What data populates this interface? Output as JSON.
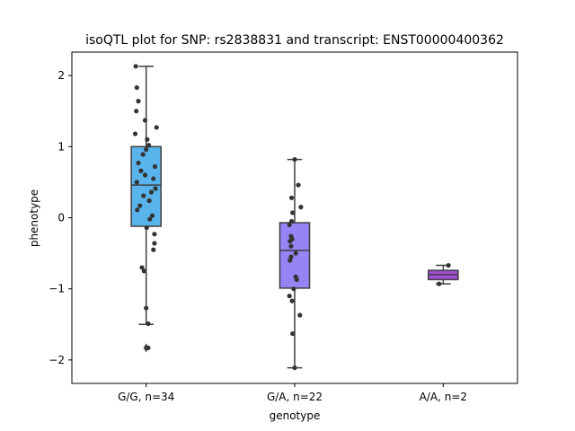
{
  "chart_data": {
    "type": "box",
    "title": "isoQTL plot for SNP: rs2838831 and transcript: ENST00000400362",
    "xlabel": "genotype",
    "ylabel": "phenotype",
    "ylim": [
      -2.33,
      2.33
    ],
    "yticks": [
      -2,
      -1,
      0,
      1,
      2
    ],
    "ytick_labels": [
      "−2",
      "−1",
      "0",
      "1",
      "2"
    ],
    "grid": false,
    "categories": [
      "G/G, n=34",
      "G/A, n=22",
      "A/A, n=2"
    ],
    "colors": [
      "#5ab4ec",
      "#9584f4",
      "#a24cd6"
    ],
    "boxes": [
      {
        "category": "G/G, n=34",
        "q1": -0.12,
        "median": 0.46,
        "q3": 1.0,
        "whisker_low": -1.5,
        "whisker_high": 2.13,
        "outliers": [
          -1.83
        ]
      },
      {
        "category": "G/A, n=22",
        "q1": -0.99,
        "median": -0.46,
        "q3": -0.07,
        "whisker_low": -2.11,
        "whisker_high": 0.82,
        "outliers": []
      },
      {
        "category": "A/A, n=2",
        "q1": -0.87,
        "median": -0.8,
        "q3": -0.74,
        "whisker_low": -0.93,
        "whisker_high": -0.67,
        "outliers": []
      }
    ],
    "points": [
      {
        "category": "G/G, n=34",
        "jitter": [
          -0.2,
          -0.18,
          -0.19,
          -0.02,
          0.2,
          0.02,
          0.05,
          0.0,
          -0.06,
          -0.15,
          0.17,
          -0.1,
          -0.02,
          0.14,
          -0.18,
          0.18,
          0.1,
          -0.05,
          0.06,
          -0.12,
          -0.17,
          0.12,
          0.07,
          0.01,
          0.16,
          0.16,
          0.14,
          -0.08,
          -0.04,
          0.0,
          0.04,
          0.04,
          -0.21,
          -0.15
        ],
        "values": [
          2.13,
          1.83,
          1.5,
          1.37,
          1.27,
          1.1,
          1.02,
          0.96,
          0.89,
          0.77,
          0.72,
          0.66,
          0.6,
          0.55,
          0.5,
          0.41,
          0.36,
          0.31,
          0.24,
          0.17,
          0.11,
          0.03,
          -0.02,
          -0.14,
          -0.23,
          -0.36,
          -0.45,
          -0.7,
          -0.75,
          -1.27,
          -1.49,
          -1.83,
          1.18,
          1.64
        ]
      },
      {
        "category": "G/A, n=22",
        "jitter": [
          0.0,
          0.07,
          -0.06,
          0.12,
          -0.04,
          -0.06,
          -0.1,
          -0.07,
          -0.05,
          -0.09,
          -0.07,
          -0.07,
          0.02,
          -0.09,
          0.02,
          0.04,
          -0.02,
          -0.1,
          -0.05,
          0.1,
          -0.04,
          0.0
        ],
        "values": [
          0.82,
          0.46,
          0.28,
          0.15,
          0.07,
          -0.05,
          -0.1,
          -0.26,
          -0.3,
          -0.33,
          -0.4,
          -0.55,
          -0.5,
          -0.6,
          -0.83,
          -0.87,
          -1.0,
          -1.1,
          -1.17,
          -1.37,
          -1.63,
          -2.11
        ]
      },
      {
        "category": "A/A, n=2",
        "jitter": [
          0.1,
          -0.08
        ],
        "values": [
          -0.67,
          -0.93
        ]
      }
    ]
  }
}
